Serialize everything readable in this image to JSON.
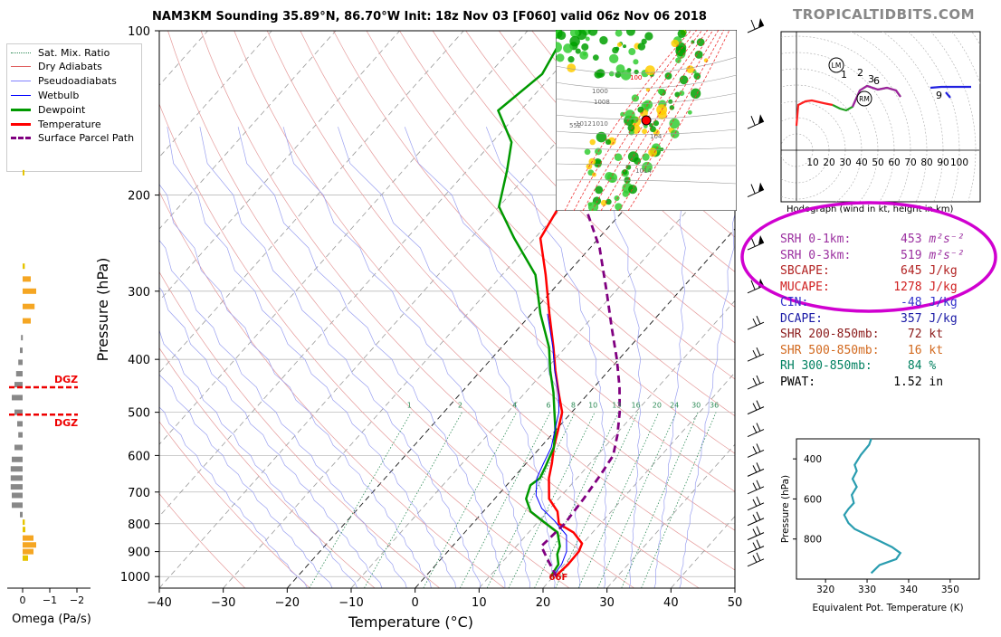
{
  "header": {
    "title": "NAM3KM Sounding 35.89°N, 86.70°W Init: 18z Nov 03 [F060] valid 06z Nov 06 2018",
    "brand": "TROPICALTIDBITS.COM"
  },
  "legend": [
    {
      "label": "Sat. Mix. Ratio",
      "color": "#2e8b57",
      "style": "dotted"
    },
    {
      "label": "Dry Adiabats",
      "color": "#e06060",
      "style": "solid-thin"
    },
    {
      "label": "Pseudoadiabats",
      "color": "#8080ff",
      "style": "solid-thin"
    },
    {
      "label": "Wetbulb",
      "color": "#0000ff",
      "style": "solid"
    },
    {
      "label": "Dewpoint",
      "color": "#009900",
      "style": "thick"
    },
    {
      "label": "Temperature",
      "color": "#ff0000",
      "style": "thick"
    },
    {
      "label": "Surface Parcel Path",
      "color": "#800080",
      "style": "dashed"
    }
  ],
  "params": [
    {
      "label": "SRH 0-1km:",
      "value": "453",
      "unit": "m²s⁻²",
      "color": "#9b30a0"
    },
    {
      "label": "SRH 0-3km:",
      "value": "519",
      "unit": "m²s⁻²",
      "color": "#9b30a0"
    },
    {
      "label": "SBCAPE:",
      "value": "645",
      "unit": "J/kg",
      "color": "#b22222"
    },
    {
      "label": "MUCAPE:",
      "value": "1278",
      "unit": "J/kg",
      "color": "#d02020"
    },
    {
      "label": "CIN:",
      "value": "-48",
      "unit": "J/kg",
      "color": "#3333cc"
    },
    {
      "label": "DCAPE:",
      "value": "357",
      "unit": "J/kg",
      "color": "#1a1aa6"
    },
    {
      "label": "SHR 200-850mb:",
      "value": "72",
      "unit": "kt",
      "color": "#8b1a1a"
    },
    {
      "label": "SHR 500-850mb:",
      "value": "16",
      "unit": "kt",
      "color": "#d2691e"
    },
    {
      "label": "RH 300-850mb:",
      "value": "84",
      "unit": "%",
      "color": "#008060"
    },
    {
      "label": "PWAT:",
      "value": "1.52",
      "unit": "in",
      "color": "#000000"
    }
  ],
  "highlight_color": "#d000d0",
  "hodograph": {
    "caption": "Hodograph (wind in kt, height in km)",
    "ring_labels": [
      "10",
      "20",
      "30",
      "40",
      "50",
      "60",
      "70",
      "80",
      "90",
      "100"
    ],
    "markers": {
      "lm": "LM",
      "rm": "RM"
    },
    "height_labels": [
      "1",
      "2",
      "3",
      "6",
      "9"
    ],
    "path_low": [
      [
        0,
        -25
      ],
      [
        1,
        -5
      ],
      [
        3,
        7
      ],
      [
        8,
        12
      ],
      [
        15,
        13
      ]
    ],
    "path_mid": [
      [
        15,
        13
      ],
      [
        22,
        10
      ],
      [
        32,
        8
      ],
      [
        40,
        7
      ],
      [
        50,
        4
      ],
      [
        58,
        2
      ]
    ],
    "path_high": [
      [
        58,
        2
      ],
      [
        65,
        5
      ],
      [
        75,
        8
      ],
      [
        88,
        8
      ],
      [
        100,
        9
      ],
      [
        108,
        10
      ]
    ],
    "path_top": [
      [
        108,
        10
      ],
      [
        118,
        12
      ],
      [
        130,
        12
      ],
      [
        145,
        13
      ],
      [
        160,
        14
      ],
      [
        175,
        16
      ]
    ],
    "path_cap": [
      [
        160,
        12
      ],
      [
        168,
        8
      ]
    ]
  },
  "thetae_chart": {
    "xlabel": "Equivalent Pot. Temperature (K)",
    "ylabel": "Pressure (hPa)",
    "xticks": [
      "320",
      "330",
      "340",
      "350"
    ],
    "yticks": [
      "400",
      "600",
      "800"
    ],
    "xlim": [
      313,
      357
    ],
    "ylim": [
      1000,
      300
    ],
    "profile": [
      [
        331,
        300
      ],
      [
        330.5,
        330
      ],
      [
        328.5,
        380
      ],
      [
        327,
        430
      ],
      [
        327.5,
        460
      ],
      [
        326.5,
        500
      ],
      [
        327.5,
        540
      ],
      [
        326.3,
        580
      ],
      [
        326.8,
        620
      ],
      [
        325.5,
        650
      ],
      [
        324.5,
        680
      ],
      [
        325.5,
        720
      ],
      [
        327,
        750
      ],
      [
        330,
        780
      ],
      [
        333,
        810
      ],
      [
        336,
        840
      ],
      [
        338,
        870
      ],
      [
        337,
        900
      ],
      [
        333,
        930
      ],
      [
        331,
        970
      ]
    ]
  },
  "chart_data": {
    "type": "line",
    "subtype": "skew-t log-p",
    "xlabel": "Temperature (°C)",
    "ylabel": "Pressure (hPa)",
    "xticks": [
      "−40",
      "−30",
      "−20",
      "−10",
      "0",
      "10",
      "20",
      "30",
      "40",
      "50"
    ],
    "yticks": [
      "100",
      "200",
      "300",
      "400",
      "500",
      "600",
      "700",
      "800",
      "900",
      "1000"
    ],
    "xlim": [
      -40,
      50
    ],
    "ylim": [
      1050,
      100
    ],
    "mixing_ratio_labels": [
      "1",
      "2",
      "4",
      "6",
      "8",
      "10",
      "13",
      "16",
      "20",
      "24",
      "30",
      "36"
    ],
    "surface_temp_label": "66F",
    "series": [
      {
        "name": "Temperature",
        "color": "#ff0000",
        "points": [
          [
            20.3,
            1000
          ],
          [
            20.6,
            950
          ],
          [
            20.5,
            900
          ],
          [
            19.9,
            870
          ],
          [
            17,
            830
          ],
          [
            13.5,
            800
          ],
          [
            11.6,
            760
          ],
          [
            8.5,
            720
          ],
          [
            5.6,
            660
          ],
          [
            4,
            620
          ],
          [
            2.1,
            580
          ],
          [
            0.4,
            540
          ],
          [
            -1.5,
            500
          ],
          [
            -4.8,
            460
          ],
          [
            -8.3,
            420
          ],
          [
            -11.9,
            380
          ],
          [
            -17.2,
            330
          ],
          [
            -23.2,
            280
          ],
          [
            -29.1,
            240
          ],
          [
            -30.6,
            210
          ],
          [
            -28.8,
            190
          ],
          [
            -29.2,
            170
          ],
          [
            -30.4,
            150
          ],
          [
            -31.8,
            130
          ],
          [
            -34.7,
            110
          ],
          [
            -36.5,
            100
          ]
        ]
      },
      {
        "name": "Dewpoint",
        "color": "#009900",
        "points": [
          [
            19.6,
            1000
          ],
          [
            19.1,
            950
          ],
          [
            17.5,
            910
          ],
          [
            16.8,
            880
          ],
          [
            14.5,
            830
          ],
          [
            10.5,
            790
          ],
          [
            7.4,
            760
          ],
          [
            4.9,
            720
          ],
          [
            3.7,
            680
          ],
          [
            4.2,
            660
          ],
          [
            3.5,
            630
          ],
          [
            2.1,
            580
          ],
          [
            0,
            540
          ],
          [
            -2.7,
            500
          ],
          [
            -5.6,
            460
          ],
          [
            -9.1,
            420
          ],
          [
            -12.6,
            380
          ],
          [
            -18.6,
            330
          ],
          [
            -24.8,
            280
          ],
          [
            -33.2,
            240
          ],
          [
            -40,
            210
          ],
          [
            -43.8,
            180
          ],
          [
            -47,
            160
          ],
          [
            -53.5,
            140
          ],
          [
            -51.7,
            120
          ],
          [
            -53.9,
            100
          ]
        ]
      },
      {
        "name": "Wetbulb",
        "color": "#0000ff",
        "points": [
          [
            19.9,
            1000
          ],
          [
            19.6,
            950
          ],
          [
            18.6,
            900
          ],
          [
            16.3,
            840
          ],
          [
            12.4,
            790
          ],
          [
            8.7,
            750
          ],
          [
            6,
            710
          ],
          [
            3.7,
            660
          ],
          [
            2.7,
            620
          ],
          [
            1.7,
            580
          ],
          [
            -0.1,
            540
          ],
          [
            -2,
            500
          ],
          [
            -4.8,
            460
          ],
          [
            -8.4,
            420
          ],
          [
            -12,
            380
          ],
          [
            -17.5,
            330
          ]
        ]
      },
      {
        "name": "Surface Parcel Path",
        "color": "#800080",
        "points": [
          [
            20.5,
            1000
          ],
          [
            16.7,
            930
          ],
          [
            13.9,
            880
          ],
          [
            14.4,
            800
          ],
          [
            13.9,
            720
          ],
          [
            13.2,
            650
          ],
          [
            12.5,
            600
          ],
          [
            10.3,
            550
          ],
          [
            7.5,
            500
          ],
          [
            4,
            450
          ],
          [
            -0.3,
            400
          ],
          [
            -5.5,
            350
          ],
          [
            -11.4,
            300
          ],
          [
            -18.5,
            250
          ],
          [
            -26.5,
            210
          ],
          [
            -39.8,
            160
          ],
          [
            -46.5,
            120
          ],
          [
            -48,
            100
          ]
        ]
      }
    ]
  },
  "omega_chart": {
    "xlabel": "Omega (Pa/s)",
    "xticks": [
      "0",
      "−1",
      "−2"
    ],
    "dgz_label": "DGZ",
    "bars": [
      {
        "p": 182,
        "v": 0.03,
        "c": "#e6c400"
      },
      {
        "p": 270,
        "v": 0.04,
        "c": "#e6c400"
      },
      {
        "p": 285,
        "v": 0.15,
        "c": "#f5a623"
      },
      {
        "p": 300,
        "v": 0.25,
        "c": "#f5a623"
      },
      {
        "p": 320,
        "v": 0.22,
        "c": "#f5a623"
      },
      {
        "p": 340,
        "v": 0.15,
        "c": "#f5a623"
      },
      {
        "p": 365,
        "v": -0.03,
        "c": "#888888"
      },
      {
        "p": 385,
        "v": -0.05,
        "c": "#888888"
      },
      {
        "p": 405,
        "v": -0.08,
        "c": "#888888"
      },
      {
        "p": 425,
        "v": -0.12,
        "c": "#888888"
      },
      {
        "p": 445,
        "v": -0.15,
        "c": "#888888"
      },
      {
        "p": 470,
        "v": -0.2,
        "c": "#888888"
      },
      {
        "p": 500,
        "v": -0.15,
        "c": "#888888"
      },
      {
        "p": 525,
        "v": -0.1,
        "c": "#888888"
      },
      {
        "p": 550,
        "v": -0.08,
        "c": "#888888"
      },
      {
        "p": 580,
        "v": -0.15,
        "c": "#888888"
      },
      {
        "p": 610,
        "v": -0.2,
        "c": "#888888"
      },
      {
        "p": 635,
        "v": -0.22,
        "c": "#888888"
      },
      {
        "p": 660,
        "v": -0.22,
        "c": "#888888"
      },
      {
        "p": 685,
        "v": -0.22,
        "c": "#888888"
      },
      {
        "p": 710,
        "v": -0.2,
        "c": "#888888"
      },
      {
        "p": 740,
        "v": -0.2,
        "c": "#888888"
      },
      {
        "p": 770,
        "v": -0.05,
        "c": "#888888"
      },
      {
        "p": 795,
        "v": 0.04,
        "c": "#e6c400"
      },
      {
        "p": 820,
        "v": 0.05,
        "c": "#e6c400"
      },
      {
        "p": 850,
        "v": 0.2,
        "c": "#f5a623"
      },
      {
        "p": 875,
        "v": 0.25,
        "c": "#f5a623"
      },
      {
        "p": 900,
        "v": 0.2,
        "c": "#f5a623"
      },
      {
        "p": 925,
        "v": 0.1,
        "c": "#e6c400"
      }
    ],
    "dgz": [
      450,
      505
    ]
  },
  "map_inset": {
    "contour_labels": [
      "100",
      "1000",
      "1008",
      "1010",
      "1012",
      "1014",
      "552",
      "104"
    ],
    "marker_color": "#ff0000"
  }
}
